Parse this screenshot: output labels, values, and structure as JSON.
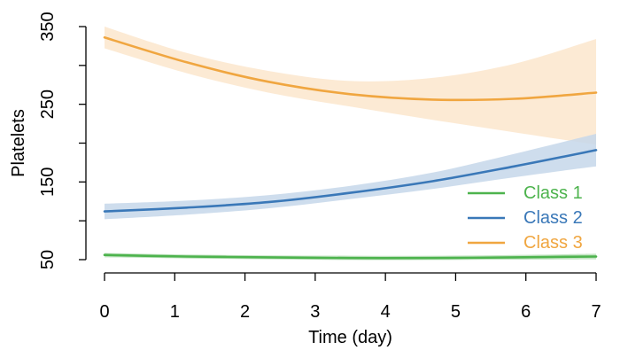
{
  "chart_data": {
    "type": "line",
    "title": "",
    "xlabel": "Time (day)",
    "ylabel": "Platelets",
    "xlim": [
      0,
      7
    ],
    "ylim": [
      50,
      350
    ],
    "x_ticks": [
      0,
      1,
      2,
      3,
      4,
      5,
      6,
      7
    ],
    "y_ticks": [
      50,
      150,
      250,
      350
    ],
    "grid": false,
    "legend_position": "bottom-right",
    "series": [
      {
        "name": "Class 1",
        "color": "#4db34d",
        "band_color": "#b9dfb9",
        "x": [
          0,
          1.17,
          2.33,
          3.5,
          4.67,
          5.83,
          7
        ],
        "values": [
          56,
          54,
          53,
          52,
          52,
          53,
          54
        ],
        "lower": [
          53,
          51.5,
          50.5,
          49.5,
          49.5,
          50,
          50.5
        ],
        "upper": [
          58.5,
          56.5,
          55.5,
          55,
          55,
          56,
          57.5
        ]
      },
      {
        "name": "Class 2",
        "color": "#3a78b8",
        "band_color": "#c6d7ea",
        "x": [
          0,
          1.17,
          2.33,
          3.5,
          4.67,
          5.83,
          7
        ],
        "values": [
          112,
          117,
          124,
          136,
          151,
          170,
          191
        ],
        "lower": [
          102,
          108,
          116,
          128,
          141,
          156,
          170
        ],
        "upper": [
          122,
          126,
          133,
          145,
          162,
          186,
          212
        ]
      },
      {
        "name": "Class 3",
        "color": "#f0a640",
        "band_color": "#fbe6cc",
        "x": [
          0,
          1.17,
          2.33,
          3.5,
          4.67,
          5.83,
          7
        ],
        "values": [
          336,
          304,
          279,
          263,
          256,
          257,
          265
        ],
        "lower": [
          322,
          290,
          265,
          247,
          230,
          214,
          198
        ],
        "upper": [
          350,
          316,
          293,
          280,
          284,
          302,
          334
        ]
      }
    ]
  }
}
